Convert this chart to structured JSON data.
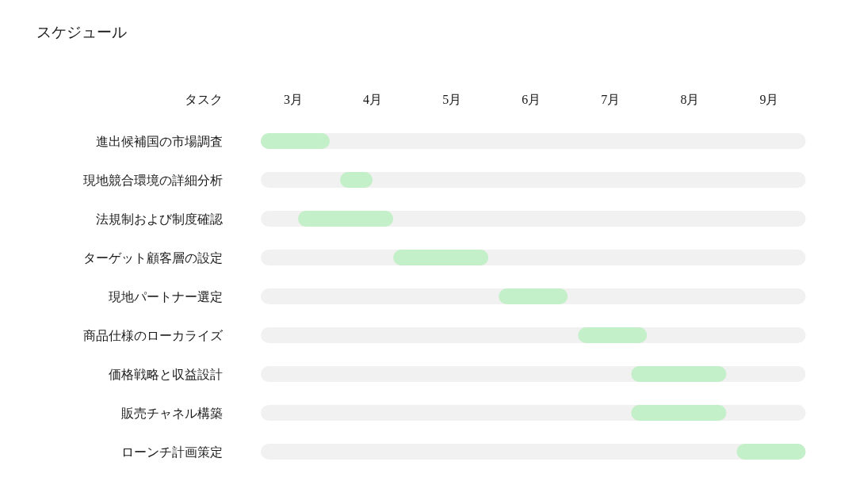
{
  "chart_data": {
    "type": "bar",
    "orientation": "horizontal",
    "title": "スケジュール",
    "ylabel": "タスク",
    "categories": [
      "進出候補国の市場調査",
      "現地競合環境の詳細分析",
      "法規制および制度確認",
      "ターゲット顧客層の設定",
      "現地パートナー選定",
      "商品仕様のローカライズ",
      "価格戦略と収益設計",
      "販売チャネル構築",
      "ローンチ計画策定"
    ],
    "base": [
      3,
      4,
      3.47,
      4.67,
      6,
      7,
      7.67,
      7.67,
      9
    ],
    "values": [
      0.87,
      0.41,
      1.2,
      1.2,
      0.87,
      0.87,
      1.2,
      1.2,
      0.87
    ],
    "color": "#c4f0c9",
    "xlim": [
      3,
      9.87
    ],
    "xticks": [
      {
        "value": 3.41,
        "label": "3月"
      },
      {
        "value": 4.41,
        "label": "4月"
      },
      {
        "value": 5.41,
        "label": "5月"
      },
      {
        "value": 6.41,
        "label": "6月"
      },
      {
        "value": 7.41,
        "label": "7月"
      },
      {
        "value": 8.41,
        "label": "8月"
      },
      {
        "value": 9.41,
        "label": "9月"
      }
    ]
  }
}
